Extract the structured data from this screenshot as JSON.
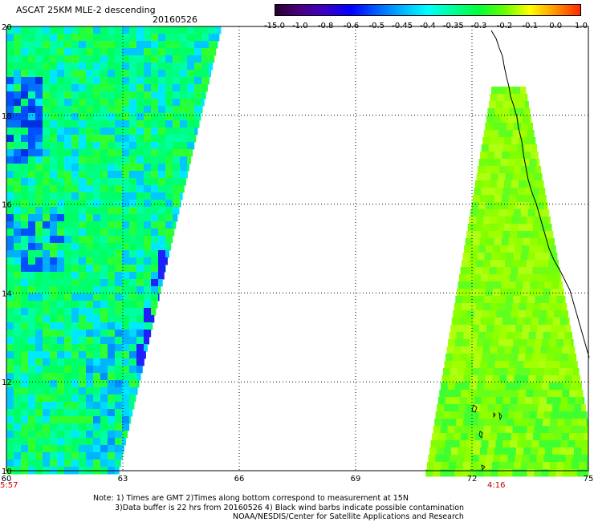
{
  "header": {
    "title": "ASCAT 25KM MLE-2 descending",
    "date": "20160526"
  },
  "colorbar": {
    "labels": [
      "-15.0",
      "-1.0",
      "-0.8",
      "-0.6",
      "-0.5",
      "-0.45",
      "-0.4",
      "-0.35",
      "-0.3",
      "-0.2",
      "-0.1",
      "0.0",
      "1.0"
    ],
    "colors": [
      "#2a0030",
      "#4b0082",
      "#3a00c8",
      "#0000ff",
      "#0060ff",
      "#00b4ff",
      "#00ffff",
      "#00ff96",
      "#00ff3c",
      "#64ff00",
      "#ffff00",
      "#ff9600",
      "#ff2800"
    ]
  },
  "map": {
    "x_ticks": [
      "60",
      "63",
      "66",
      "69",
      "72",
      "75"
    ],
    "y_ticks": [
      "20",
      "18",
      "16",
      "14",
      "12",
      "10"
    ],
    "lon_range": [
      60,
      75
    ],
    "lat_range": [
      10,
      20
    ]
  },
  "times": {
    "left": "5:57",
    "right": "4:16"
  },
  "notes": {
    "line1": "Note: 1) Times are GMT 2)Times along bottom correspond to measurement at 15N",
    "line2": "3)Data buffer is 22 hrs from 20160526 4) Black wind barbs indicate possible contamination",
    "line3": "NOAA/NESDIS/Center for Satellite Applications and Research"
  }
}
